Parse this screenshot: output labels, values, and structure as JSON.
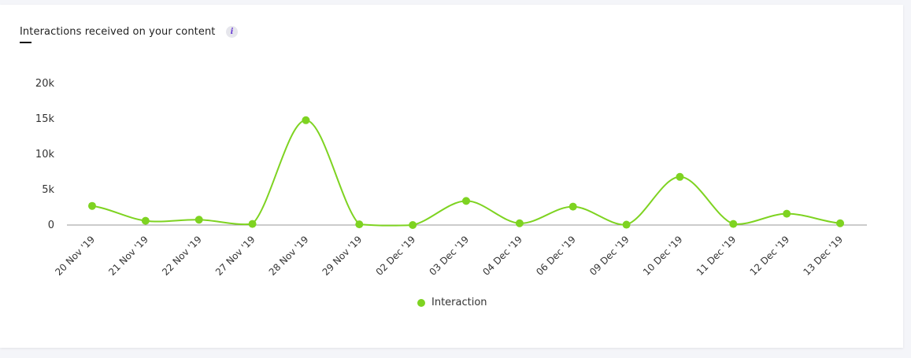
{
  "card": {
    "title": "Interactions received on your content",
    "info_icon": "i"
  },
  "colors": {
    "series": "#7ed321",
    "axis": "#999999",
    "text": "#333333",
    "info_glyph": "#6b3fd4"
  },
  "legend": [
    {
      "label": "Interaction",
      "color": "#7ed321"
    }
  ],
  "chart_data": {
    "type": "line",
    "title": "Interactions received on your content",
    "xlabel": "",
    "ylabel": "",
    "ylim": [
      0,
      20000
    ],
    "yticks": [
      0,
      5000,
      10000,
      15000,
      20000
    ],
    "ytick_labels": [
      "0",
      "5k",
      "10k",
      "15k",
      "20k"
    ],
    "grid": false,
    "smooth": true,
    "legend_position": "bottom",
    "categories": [
      "20 Nov '19",
      "21 Nov '19",
      "22 Nov '19",
      "27 Nov '19",
      "28 Nov '19",
      "29 Nov '19",
      "02 Dec '19",
      "03 Dec '19",
      "04 Dec '19",
      "06 Dec '19",
      "09 Dec '19",
      "10 Dec '19",
      "11 Dec '19",
      "12 Dec '19",
      "13 Dec '19"
    ],
    "series": [
      {
        "name": "Interaction",
        "values": [
          2700,
          600,
          750,
          150,
          14800,
          100,
          0,
          3400,
          250,
          2600,
          50,
          6800,
          150,
          1600,
          250
        ]
      }
    ]
  }
}
